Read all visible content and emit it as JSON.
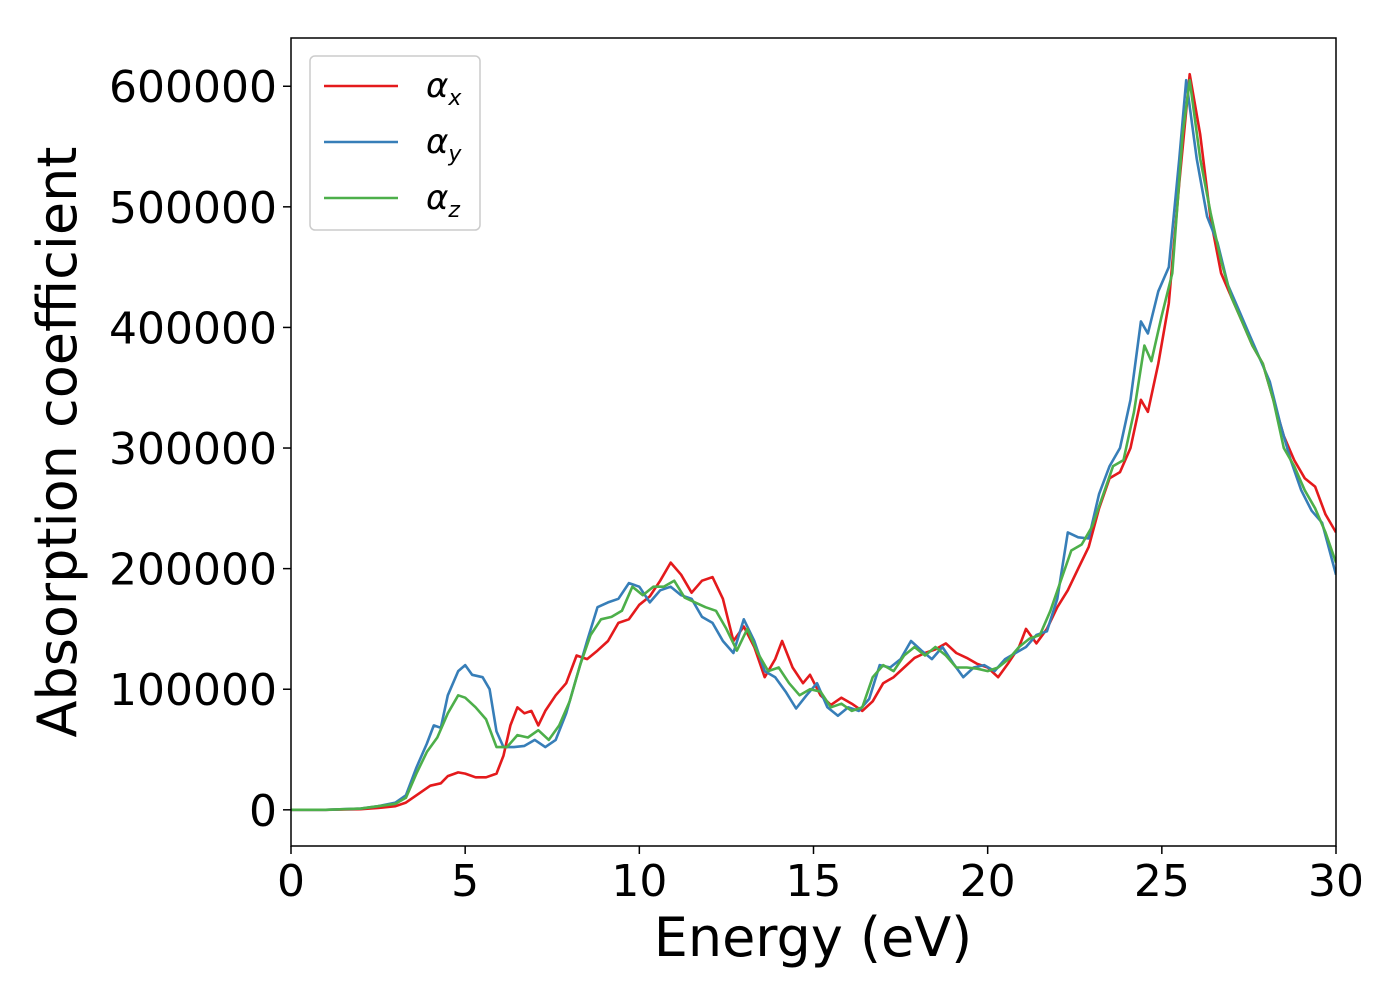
{
  "chart_data": {
    "type": "line",
    "title": "",
    "xlabel": "Energy (eV)",
    "ylabel": "Absorption coefficient",
    "xlim": [
      0,
      30
    ],
    "ylim": [
      -30000,
      640000
    ],
    "xticks": [
      0,
      5,
      10,
      15,
      20,
      25,
      30
    ],
    "xtick_labels": [
      "0",
      "5",
      "10",
      "15",
      "20",
      "25",
      "30"
    ],
    "yticks": [
      0,
      100000,
      200000,
      300000,
      400000,
      500000,
      600000
    ],
    "ytick_labels": [
      "0",
      "100000",
      "200000",
      "300000",
      "400000",
      "500000",
      "600000"
    ],
    "grid": false,
    "legend_position": "top-left",
    "series": [
      {
        "name": "α",
        "subscript": "x",
        "color": "#e41a1c",
        "points": [
          [
            0,
            0
          ],
          [
            1,
            0
          ],
          [
            2,
            500
          ],
          [
            2.5,
            1500
          ],
          [
            3,
            3000
          ],
          [
            3.3,
            6000
          ],
          [
            3.6,
            12000
          ],
          [
            4,
            20000
          ],
          [
            4.3,
            22000
          ],
          [
            4.5,
            28000
          ],
          [
            4.8,
            31000
          ],
          [
            5,
            30000
          ],
          [
            5.3,
            27000
          ],
          [
            5.6,
            27000
          ],
          [
            5.9,
            30000
          ],
          [
            6.1,
            45000
          ],
          [
            6.3,
            70000
          ],
          [
            6.5,
            85000
          ],
          [
            6.7,
            80000
          ],
          [
            6.9,
            82000
          ],
          [
            7.1,
            70000
          ],
          [
            7.3,
            82000
          ],
          [
            7.6,
            95000
          ],
          [
            7.9,
            105000
          ],
          [
            8.2,
            128000
          ],
          [
            8.5,
            125000
          ],
          [
            8.8,
            132000
          ],
          [
            9.1,
            140000
          ],
          [
            9.4,
            155000
          ],
          [
            9.7,
            158000
          ],
          [
            10,
            170000
          ],
          [
            10.3,
            177000
          ],
          [
            10.6,
            190000
          ],
          [
            10.9,
            205000
          ],
          [
            11.2,
            195000
          ],
          [
            11.5,
            180000
          ],
          [
            11.8,
            190000
          ],
          [
            12.1,
            193000
          ],
          [
            12.4,
            175000
          ],
          [
            12.7,
            140000
          ],
          [
            13,
            152000
          ],
          [
            13.3,
            135000
          ],
          [
            13.6,
            110000
          ],
          [
            13.9,
            125000
          ],
          [
            14.1,
            140000
          ],
          [
            14.4,
            118000
          ],
          [
            14.7,
            105000
          ],
          [
            14.9,
            112000
          ],
          [
            15.2,
            95000
          ],
          [
            15.5,
            87000
          ],
          [
            15.8,
            93000
          ],
          [
            16.1,
            88000
          ],
          [
            16.4,
            82000
          ],
          [
            16.7,
            90000
          ],
          [
            17,
            105000
          ],
          [
            17.3,
            110000
          ],
          [
            17.6,
            118000
          ],
          [
            17.9,
            126000
          ],
          [
            18.2,
            130000
          ],
          [
            18.5,
            133000
          ],
          [
            18.8,
            138000
          ],
          [
            19.1,
            130000
          ],
          [
            19.4,
            126000
          ],
          [
            19.7,
            121000
          ],
          [
            20,
            118000
          ],
          [
            20.3,
            110000
          ],
          [
            20.6,
            122000
          ],
          [
            20.9,
            135000
          ],
          [
            21.1,
            150000
          ],
          [
            21.4,
            138000
          ],
          [
            21.7,
            150000
          ],
          [
            22,
            168000
          ],
          [
            22.3,
            182000
          ],
          [
            22.6,
            200000
          ],
          [
            22.9,
            218000
          ],
          [
            23.2,
            250000
          ],
          [
            23.5,
            275000
          ],
          [
            23.8,
            280000
          ],
          [
            24.1,
            300000
          ],
          [
            24.4,
            340000
          ],
          [
            24.6,
            330000
          ],
          [
            24.9,
            370000
          ],
          [
            25.2,
            420000
          ],
          [
            25.5,
            520000
          ],
          [
            25.8,
            610000
          ],
          [
            26.1,
            560000
          ],
          [
            26.4,
            490000
          ],
          [
            26.7,
            445000
          ],
          [
            27,
            425000
          ],
          [
            27.3,
            405000
          ],
          [
            27.6,
            385000
          ],
          [
            27.9,
            370000
          ],
          [
            28.2,
            340000
          ],
          [
            28.5,
            310000
          ],
          [
            28.8,
            290000
          ],
          [
            29.1,
            275000
          ],
          [
            29.4,
            268000
          ],
          [
            29.7,
            245000
          ],
          [
            30,
            230000
          ]
        ]
      },
      {
        "name": "α",
        "subscript": "y",
        "color": "#377eb8",
        "points": [
          [
            0,
            0
          ],
          [
            1,
            0
          ],
          [
            2,
            1000
          ],
          [
            2.5,
            3000
          ],
          [
            3,
            6000
          ],
          [
            3.3,
            12000
          ],
          [
            3.6,
            35000
          ],
          [
            3.9,
            55000
          ],
          [
            4.1,
            70000
          ],
          [
            4.3,
            68000
          ],
          [
            4.5,
            95000
          ],
          [
            4.8,
            115000
          ],
          [
            5,
            120000
          ],
          [
            5.2,
            112000
          ],
          [
            5.5,
            110000
          ],
          [
            5.7,
            100000
          ],
          [
            5.9,
            65000
          ],
          [
            6.1,
            52000
          ],
          [
            6.4,
            52000
          ],
          [
            6.7,
            53000
          ],
          [
            7,
            58000
          ],
          [
            7.3,
            52000
          ],
          [
            7.6,
            58000
          ],
          [
            7.9,
            80000
          ],
          [
            8.2,
            110000
          ],
          [
            8.5,
            140000
          ],
          [
            8.8,
            168000
          ],
          [
            9.1,
            172000
          ],
          [
            9.4,
            175000
          ],
          [
            9.7,
            188000
          ],
          [
            10,
            185000
          ],
          [
            10.3,
            172000
          ],
          [
            10.6,
            182000
          ],
          [
            10.9,
            185000
          ],
          [
            11.2,
            178000
          ],
          [
            11.5,
            175000
          ],
          [
            11.8,
            160000
          ],
          [
            12.1,
            155000
          ],
          [
            12.4,
            140000
          ],
          [
            12.7,
            130000
          ],
          [
            13,
            158000
          ],
          [
            13.3,
            140000
          ],
          [
            13.6,
            115000
          ],
          [
            13.9,
            110000
          ],
          [
            14.2,
            98000
          ],
          [
            14.5,
            84000
          ],
          [
            14.8,
            95000
          ],
          [
            15.1,
            105000
          ],
          [
            15.4,
            85000
          ],
          [
            15.7,
            78000
          ],
          [
            16,
            85000
          ],
          [
            16.3,
            82000
          ],
          [
            16.6,
            92000
          ],
          [
            16.9,
            120000
          ],
          [
            17.2,
            118000
          ],
          [
            17.5,
            125000
          ],
          [
            17.8,
            140000
          ],
          [
            18.1,
            132000
          ],
          [
            18.4,
            125000
          ],
          [
            18.7,
            135000
          ],
          [
            19,
            122000
          ],
          [
            19.3,
            110000
          ],
          [
            19.6,
            118000
          ],
          [
            19.9,
            120000
          ],
          [
            20.2,
            115000
          ],
          [
            20.5,
            125000
          ],
          [
            20.8,
            130000
          ],
          [
            21.1,
            135000
          ],
          [
            21.4,
            145000
          ],
          [
            21.7,
            148000
          ],
          [
            22,
            175000
          ],
          [
            22.3,
            230000
          ],
          [
            22.6,
            226000
          ],
          [
            22.9,
            225000
          ],
          [
            23.2,
            262000
          ],
          [
            23.5,
            285000
          ],
          [
            23.8,
            300000
          ],
          [
            24.1,
            340000
          ],
          [
            24.4,
            405000
          ],
          [
            24.6,
            395000
          ],
          [
            24.9,
            430000
          ],
          [
            25.2,
            450000
          ],
          [
            25.5,
            540000
          ],
          [
            25.7,
            605000
          ],
          [
            26,
            540000
          ],
          [
            26.3,
            492000
          ],
          [
            26.6,
            470000
          ],
          [
            26.9,
            435000
          ],
          [
            27.2,
            415000
          ],
          [
            27.5,
            395000
          ],
          [
            27.8,
            375000
          ],
          [
            28.1,
            355000
          ],
          [
            28.4,
            320000
          ],
          [
            28.7,
            290000
          ],
          [
            29,
            265000
          ],
          [
            29.3,
            248000
          ],
          [
            29.6,
            238000
          ],
          [
            30,
            195000
          ]
        ]
      },
      {
        "name": "α",
        "subscript": "z",
        "color": "#4daf4a",
        "points": [
          [
            0,
            0
          ],
          [
            1,
            0
          ],
          [
            2,
            1000
          ],
          [
            2.5,
            3000
          ],
          [
            3,
            5000
          ],
          [
            3.3,
            10000
          ],
          [
            3.6,
            30000
          ],
          [
            3.9,
            48000
          ],
          [
            4.2,
            60000
          ],
          [
            4.5,
            80000
          ],
          [
            4.8,
            95000
          ],
          [
            5,
            93000
          ],
          [
            5.3,
            85000
          ],
          [
            5.6,
            75000
          ],
          [
            5.9,
            52000
          ],
          [
            6.2,
            52000
          ],
          [
            6.5,
            62000
          ],
          [
            6.8,
            60000
          ],
          [
            7.1,
            66000
          ],
          [
            7.4,
            58000
          ],
          [
            7.7,
            70000
          ],
          [
            8,
            90000
          ],
          [
            8.3,
            120000
          ],
          [
            8.6,
            145000
          ],
          [
            8.9,
            158000
          ],
          [
            9.2,
            160000
          ],
          [
            9.5,
            165000
          ],
          [
            9.8,
            185000
          ],
          [
            10.1,
            178000
          ],
          [
            10.4,
            185000
          ],
          [
            10.7,
            185000
          ],
          [
            11,
            190000
          ],
          [
            11.3,
            176000
          ],
          [
            11.6,
            172000
          ],
          [
            11.9,
            168000
          ],
          [
            12.2,
            165000
          ],
          [
            12.5,
            150000
          ],
          [
            12.8,
            132000
          ],
          [
            13.1,
            150000
          ],
          [
            13.4,
            130000
          ],
          [
            13.7,
            115000
          ],
          [
            14,
            118000
          ],
          [
            14.3,
            105000
          ],
          [
            14.6,
            95000
          ],
          [
            14.9,
            100000
          ],
          [
            15.2,
            98000
          ],
          [
            15.5,
            85000
          ],
          [
            15.8,
            88000
          ],
          [
            16.1,
            82000
          ],
          [
            16.4,
            85000
          ],
          [
            16.7,
            110000
          ],
          [
            17,
            120000
          ],
          [
            17.3,
            115000
          ],
          [
            17.6,
            128000
          ],
          [
            17.9,
            135000
          ],
          [
            18.2,
            128000
          ],
          [
            18.5,
            135000
          ],
          [
            18.8,
            128000
          ],
          [
            19.1,
            118000
          ],
          [
            19.4,
            118000
          ],
          [
            19.7,
            117000
          ],
          [
            20,
            115000
          ],
          [
            20.3,
            118000
          ],
          [
            20.6,
            125000
          ],
          [
            20.9,
            135000
          ],
          [
            21.2,
            142000
          ],
          [
            21.5,
            145000
          ],
          [
            21.8,
            165000
          ],
          [
            22.1,
            190000
          ],
          [
            22.4,
            215000
          ],
          [
            22.7,
            220000
          ],
          [
            23,
            235000
          ],
          [
            23.3,
            260000
          ],
          [
            23.6,
            285000
          ],
          [
            23.9,
            290000
          ],
          [
            24.2,
            330000
          ],
          [
            24.5,
            385000
          ],
          [
            24.7,
            372000
          ],
          [
            25,
            410000
          ],
          [
            25.3,
            445000
          ],
          [
            25.6,
            560000
          ],
          [
            25.8,
            605000
          ],
          [
            26.1,
            540000
          ],
          [
            26.4,
            495000
          ],
          [
            26.7,
            455000
          ],
          [
            27,
            425000
          ],
          [
            27.3,
            405000
          ],
          [
            27.6,
            385000
          ],
          [
            27.9,
            370000
          ],
          [
            28.2,
            340000
          ],
          [
            28.5,
            300000
          ],
          [
            28.8,
            285000
          ],
          [
            29.1,
            265000
          ],
          [
            29.4,
            250000
          ],
          [
            29.7,
            230000
          ],
          [
            30,
            205000
          ]
        ]
      }
    ]
  }
}
